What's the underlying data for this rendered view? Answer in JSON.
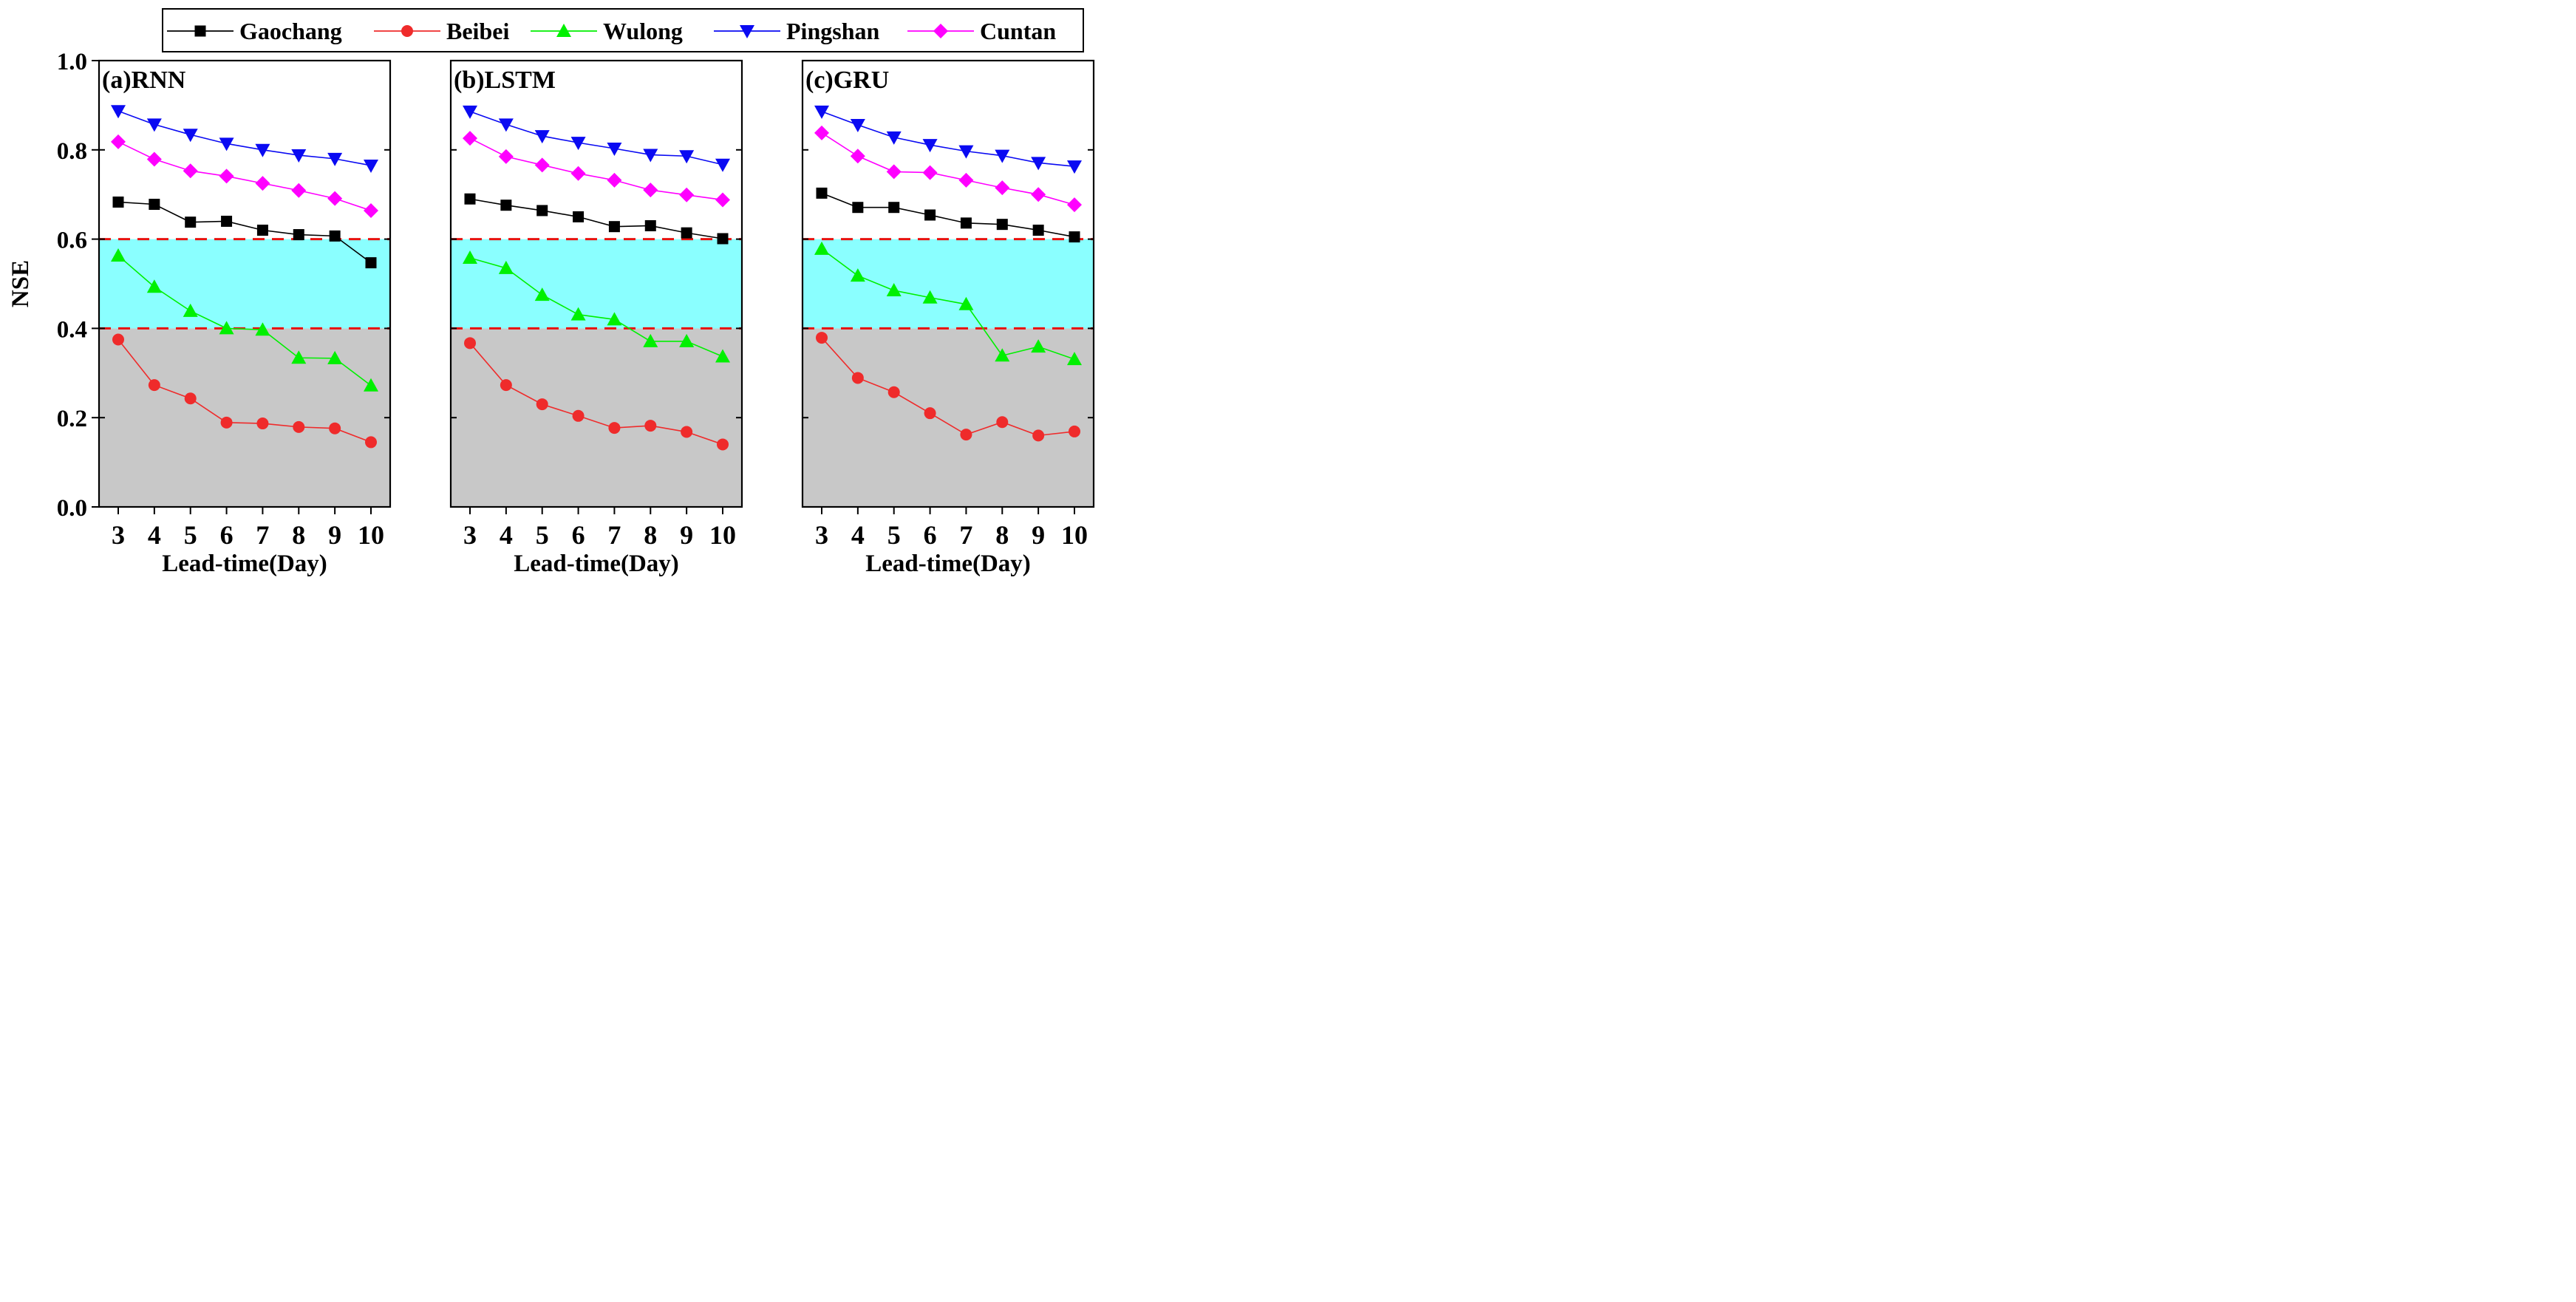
{
  "chart_data": {
    "type": "line",
    "ylabel": "NSE",
    "ylim": [
      0.0,
      1.0
    ],
    "yticks": [
      "0.0",
      "0.2",
      "0.4",
      "0.6",
      "0.8",
      "1.0"
    ],
    "thresholds": [
      0.6,
      0.4
    ],
    "bands": {
      "good": {
        "from": 0.6,
        "to": 1.0,
        "color": "#ffffff"
      },
      "satisfactory": {
        "from": 0.4,
        "to": 0.6,
        "color": "#8affff"
      },
      "unsatisfactory": {
        "from": 0.0,
        "to": 0.4,
        "color": "#c8c8c8"
      }
    },
    "threshold_color": "#e8120f",
    "grid": false,
    "legend_position": "top",
    "series_styles": [
      {
        "name": "Gaochang",
        "color": "#000000",
        "line_color": "#000000",
        "marker": "square"
      },
      {
        "name": "Beibei",
        "color": "#ef2b2b",
        "line_color": "#ef2b2b",
        "marker": "circle"
      },
      {
        "name": "Wulong",
        "color": "#00f000",
        "line_color": "#00f000",
        "marker": "triangle-up"
      },
      {
        "name": "Pingshan",
        "color": "#0a0af2",
        "line_color": "#0a0af2",
        "marker": "triangle-down"
      },
      {
        "name": "Cuntan",
        "color": "#ff00ff",
        "line_color": "#ff00ff",
        "marker": "diamond"
      }
    ],
    "panels": [
      {
        "title": "(a)RNN",
        "xlabel": "Lead-time(Day)",
        "x": [
          "3",
          "4",
          "5",
          "6",
          "7",
          "8",
          "9",
          "10"
        ],
        "series": [
          {
            "name": "Gaochang",
            "values": [
              0.683,
              0.678,
              0.638,
              0.64,
              0.62,
              0.61,
              0.607,
              0.547
            ]
          },
          {
            "name": "Beibei",
            "values": [
              0.375,
              0.273,
              0.243,
              0.189,
              0.187,
              0.179,
              0.176,
              0.145
            ]
          },
          {
            "name": "Wulong",
            "values": [
              0.563,
              0.493,
              0.439,
              0.4,
              0.397,
              0.334,
              0.333,
              0.272
            ]
          },
          {
            "name": "Pingshan",
            "values": [
              0.887,
              0.857,
              0.834,
              0.814,
              0.8,
              0.788,
              0.78,
              0.765
            ]
          },
          {
            "name": "Cuntan",
            "values": [
              0.818,
              0.779,
              0.753,
              0.741,
              0.725,
              0.709,
              0.691,
              0.664
            ]
          }
        ]
      },
      {
        "title": "(b)LSTM",
        "xlabel": "Lead-time(Day)",
        "x": [
          "3",
          "4",
          "5",
          "6",
          "7",
          "8",
          "9",
          "10"
        ],
        "series": [
          {
            "name": "Gaochang",
            "values": [
              0.69,
              0.676,
              0.664,
              0.65,
              0.628,
              0.63,
              0.614,
              0.601
            ]
          },
          {
            "name": "Beibei",
            "values": [
              0.367,
              0.273,
              0.23,
              0.204,
              0.177,
              0.182,
              0.168,
              0.14
            ]
          },
          {
            "name": "Wulong",
            "values": [
              0.558,
              0.535,
              0.475,
              0.431,
              0.42,
              0.371,
              0.371,
              0.337
            ]
          },
          {
            "name": "Pingshan",
            "values": [
              0.886,
              0.857,
              0.831,
              0.816,
              0.803,
              0.789,
              0.786,
              0.767
            ]
          },
          {
            "name": "Cuntan",
            "values": [
              0.826,
              0.785,
              0.766,
              0.747,
              0.732,
              0.71,
              0.699,
              0.688
            ]
          }
        ]
      },
      {
        "title": "(c)GRU",
        "xlabel": "Lead-time(Day)",
        "x": [
          "3",
          "4",
          "5",
          "6",
          "7",
          "8",
          "9",
          "10"
        ],
        "series": [
          {
            "name": "Gaochang",
            "values": [
              0.703,
              0.671,
              0.671,
              0.654,
              0.636,
              0.633,
              0.62,
              0.605
            ]
          },
          {
            "name": "Beibei",
            "values": [
              0.379,
              0.289,
              0.257,
              0.21,
              0.162,
              0.19,
              0.16,
              0.169
            ]
          },
          {
            "name": "Wulong",
            "values": [
              0.578,
              0.518,
              0.485,
              0.469,
              0.454,
              0.339,
              0.359,
              0.331
            ]
          },
          {
            "name": "Pingshan",
            "values": [
              0.886,
              0.856,
              0.828,
              0.811,
              0.797,
              0.787,
              0.771,
              0.763
            ]
          },
          {
            "name": "Cuntan",
            "values": [
              0.838,
              0.786,
              0.751,
              0.749,
              0.732,
              0.715,
              0.7,
              0.677
            ]
          }
        ]
      }
    ]
  }
}
